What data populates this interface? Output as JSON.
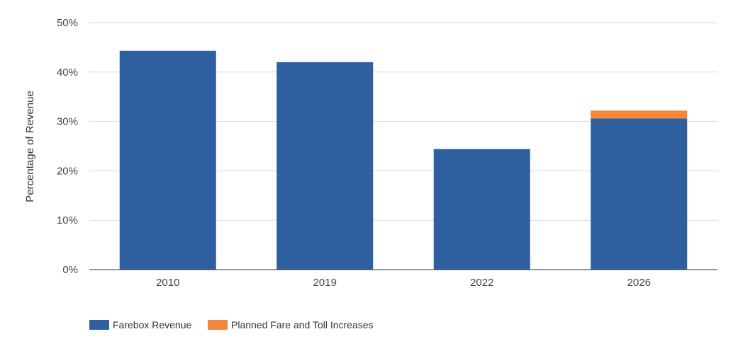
{
  "chart_data": {
    "type": "bar",
    "stacked": true,
    "categories": [
      "2010",
      "2019",
      "2022",
      "2026"
    ],
    "series": [
      {
        "name": "Farebox Revenue",
        "color": "#2e5f9e",
        "values": [
          44.3,
          42.0,
          24.4,
          30.6
        ]
      },
      {
        "name": "Planned Fare and Toll Increases",
        "color": "#f5873a",
        "values": [
          0,
          0,
          0,
          1.6
        ]
      }
    ],
    "ylabel": "Percentage of Revenue",
    "ylim": [
      0,
      50
    ],
    "yticks": [
      {
        "value": 0,
        "label": "0%"
      },
      {
        "value": 10,
        "label": "10%"
      },
      {
        "value": 20,
        "label": "20%"
      },
      {
        "value": 30,
        "label": "30%"
      },
      {
        "value": 40,
        "label": "40%"
      },
      {
        "value": 50,
        "label": "50%"
      }
    ],
    "grid": true,
    "legend_position": "bottom-left"
  }
}
